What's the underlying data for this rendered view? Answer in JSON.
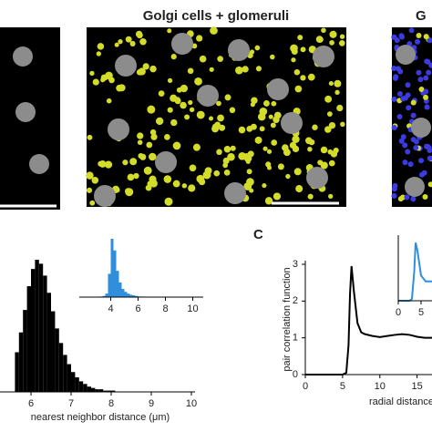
{
  "figure": {
    "middle_title": "Golgi cells + glomeruli",
    "right_title": "G",
    "panel_label_c": "C"
  },
  "chart_data": [
    {
      "type": "histogram",
      "xlabel": "nearest neighbor distance (μm)",
      "color": "#000000",
      "bins": [
        5.6,
        5.7,
        5.8,
        5.9,
        6.0,
        6.1,
        6.2,
        6.3,
        6.4,
        6.5,
        6.6,
        6.7,
        6.8,
        6.9,
        7.0,
        7.1,
        7.2,
        7.3,
        7.4,
        7.5,
        7.6,
        7.7,
        7.8,
        7.9,
        8.0,
        8.1,
        8.2,
        8.3,
        8.4
      ],
      "counts": [
        30,
        45,
        62,
        80,
        93,
        100,
        97,
        88,
        75,
        61,
        48,
        37,
        28,
        21,
        15,
        11,
        8,
        6,
        4,
        3,
        2,
        2,
        1,
        1,
        1,
        0,
        0,
        0
      ],
      "xlim": [
        5.5,
        10
      ],
      "xticks": [
        6,
        7,
        8,
        9,
        10
      ],
      "ylim": [
        0,
        100
      ]
    },
    {
      "type": "histogram",
      "color": "#2f8fdc",
      "bins": [
        2.8,
        3.0,
        3.2,
        3.4,
        3.6,
        3.8,
        4.0,
        4.2,
        4.4,
        4.6,
        4.8,
        5.0,
        5.2,
        5.4,
        5.6,
        5.8,
        6.0,
        6.2,
        6.4
      ],
      "counts": [
        0,
        0,
        1,
        2,
        6,
        40,
        100,
        80,
        45,
        25,
        14,
        9,
        6,
        4,
        3,
        2,
        1,
        1
      ],
      "xlim": [
        2.5,
        10.5
      ],
      "xticks": [
        4,
        6,
        8,
        10
      ],
      "ylim": [
        0,
        100
      ]
    },
    {
      "type": "line",
      "ylabel": "pair correlation function",
      "xlabel": "radial distance",
      "x": [
        0,
        5,
        5.5,
        5.8,
        6,
        6.2,
        6.5,
        7,
        7.5,
        8,
        9,
        10,
        11,
        12,
        13,
        14,
        15,
        16,
        17
      ],
      "series": [
        {
          "color": "#000000",
          "values": [
            0,
            0,
            0.05,
            0.8,
            2.2,
            2.95,
            2.3,
            1.4,
            1.15,
            1.1,
            1.05,
            1.02,
            1.05,
            1.08,
            1.1,
            1.08,
            1.03,
            1.0,
            1.0
          ]
        }
      ],
      "xlim": [
        0,
        17
      ],
      "xticks": [
        0,
        5,
        10,
        15
      ],
      "ylim": [
        0,
        3
      ],
      "yticks": [
        0,
        1,
        2,
        3
      ]
    },
    {
      "type": "line",
      "x": [
        0,
        2.5,
        3,
        3.5,
        3.8,
        4.2,
        5,
        6,
        7.4
      ],
      "series": [
        {
          "color": "#2f8fdc",
          "values": [
            0,
            0,
            0.1,
            1.5,
            3,
            2.6,
            1.3,
            1.0,
            1.0
          ]
        }
      ],
      "xlim": [
        -1.4,
        7.4
      ],
      "xticks": [
        0,
        5
      ],
      "ylim": [
        0,
        3.2
      ]
    }
  ]
}
